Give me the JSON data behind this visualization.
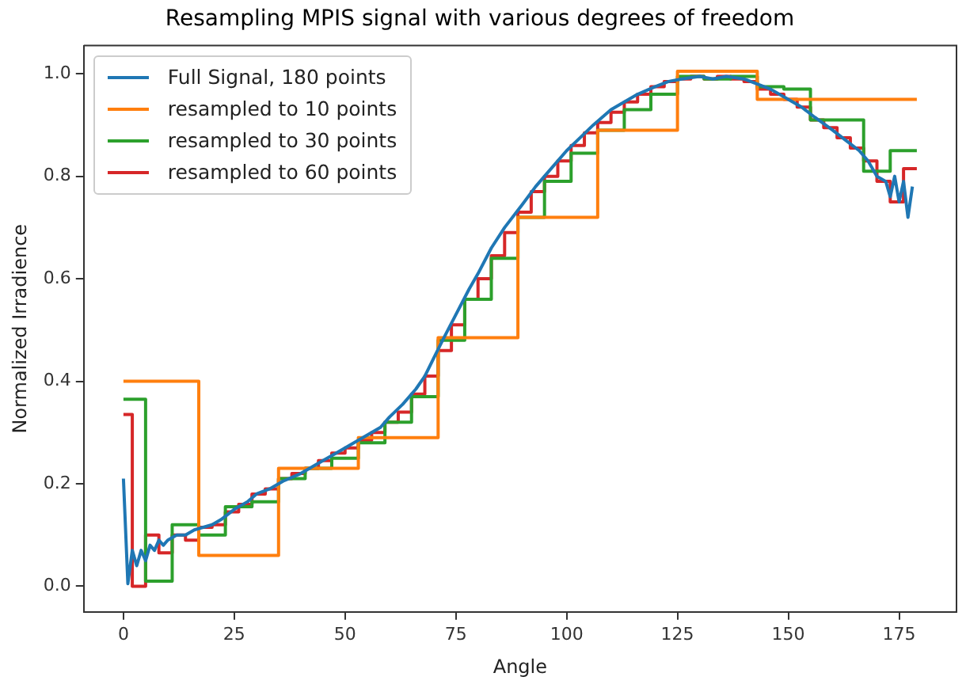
{
  "chart_data": {
    "type": "line",
    "title": "Resampling MPIS signal with various degrees of freedom",
    "xlabel": "Angle",
    "ylabel": "Normalized Irradience",
    "xlim": [
      -8.95,
      187.95
    ],
    "xticks": [
      0,
      25,
      50,
      75,
      100,
      125,
      150,
      175
    ],
    "ylim": [
      -0.05,
      1.055
    ],
    "yticks": [
      {
        "value": 0,
        "label": "0.0"
      },
      {
        "value": 0.2,
        "label": "0.2"
      },
      {
        "value": 0.4,
        "label": "0.4"
      },
      {
        "value": 0.6,
        "label": "0.6"
      },
      {
        "value": 0.8,
        "label": "0.8"
      },
      {
        "value": 1,
        "label": "1.0"
      }
    ],
    "grid": false,
    "legend": "top left",
    "line_style": "solid",
    "marker": "none",
    "series": [
      {
        "name": "Full Signal, 180 points",
        "type": "line",
        "color": "#1f77b4",
        "x": [
          0,
          1,
          2,
          3,
          4,
          5,
          6,
          7,
          8,
          9,
          10,
          12,
          14,
          16,
          18,
          20,
          22,
          25,
          28,
          30,
          33,
          36,
          40,
          44,
          48,
          50,
          54,
          58,
          60,
          63,
          66,
          68,
          70,
          72,
          75,
          78,
          80,
          83,
          86,
          90,
          93,
          96,
          100,
          103,
          106,
          110,
          113,
          116,
          120,
          123,
          126,
          130,
          133,
          136,
          140,
          143,
          146,
          150,
          153,
          156,
          160,
          163,
          166,
          168,
          170,
          172,
          173,
          174,
          175,
          176,
          177,
          178
        ],
        "values": [
          0.21,
          0.005,
          0.07,
          0.04,
          0.07,
          0.05,
          0.08,
          0.07,
          0.09,
          0.08,
          0.09,
          0.1,
          0.1,
          0.11,
          0.115,
          0.12,
          0.13,
          0.15,
          0.165,
          0.18,
          0.19,
          0.205,
          0.22,
          0.24,
          0.26,
          0.27,
          0.29,
          0.31,
          0.33,
          0.355,
          0.385,
          0.41,
          0.445,
          0.48,
          0.53,
          0.58,
          0.61,
          0.66,
          0.7,
          0.745,
          0.78,
          0.81,
          0.85,
          0.875,
          0.9,
          0.93,
          0.945,
          0.96,
          0.975,
          0.985,
          0.99,
          0.995,
          0.99,
          0.995,
          0.99,
          0.98,
          0.97,
          0.95,
          0.935,
          0.915,
          0.89,
          0.87,
          0.85,
          0.83,
          0.8,
          0.79,
          0.76,
          0.8,
          0.75,
          0.79,
          0.72,
          0.78
        ]
      },
      {
        "name": "resampled to 10 points",
        "type": "step",
        "color": "#ff7f0e",
        "x": [
          0,
          17,
          35,
          53,
          71,
          89,
          107,
          125,
          143,
          161,
          179
        ],
        "values": [
          0.4,
          0.06,
          0.23,
          0.29,
          0.485,
          0.72,
          0.89,
          1.005,
          0.95,
          0.95,
          0.95
        ]
      },
      {
        "name": "resampled to 30 points",
        "type": "step",
        "color": "#2ca02c",
        "x": [
          0,
          5,
          11,
          17,
          23,
          29,
          35,
          41,
          47,
          53,
          59,
          65,
          71,
          77,
          83,
          89,
          95,
          101,
          107,
          113,
          119,
          125,
          131,
          137,
          143,
          149,
          155,
          161,
          167,
          173,
          179
        ],
        "values": [
          0.365,
          0.01,
          0.12,
          0.1,
          0.155,
          0.165,
          0.21,
          0.23,
          0.25,
          0.28,
          0.32,
          0.37,
          0.48,
          0.56,
          0.64,
          0.72,
          0.79,
          0.845,
          0.89,
          0.93,
          0.96,
          0.995,
          0.99,
          0.995,
          0.975,
          0.97,
          0.91,
          0.91,
          0.81,
          0.85,
          0.85
        ]
      },
      {
        "name": "resampled to 60 points",
        "type": "step",
        "color": "#d62728",
        "x": [
          0,
          2,
          5,
          8,
          11,
          14,
          17,
          20,
          23,
          26,
          29,
          32,
          35,
          38,
          41,
          44,
          47,
          50,
          53,
          56,
          59,
          62,
          65,
          68,
          71,
          74,
          77,
          80,
          83,
          86,
          89,
          92,
          95,
          98,
          101,
          104,
          107,
          110,
          113,
          116,
          119,
          122,
          125,
          128,
          131,
          134,
          137,
          140,
          143,
          146,
          149,
          152,
          155,
          158,
          161,
          164,
          167,
          170,
          173,
          176,
          179
        ],
        "values": [
          0.335,
          0.0,
          0.1,
          0.065,
          0.1,
          0.09,
          0.115,
          0.12,
          0.145,
          0.16,
          0.18,
          0.19,
          0.21,
          0.22,
          0.23,
          0.245,
          0.26,
          0.27,
          0.285,
          0.3,
          0.32,
          0.34,
          0.375,
          0.41,
          0.46,
          0.51,
          0.56,
          0.6,
          0.645,
          0.69,
          0.73,
          0.77,
          0.8,
          0.83,
          0.86,
          0.885,
          0.905,
          0.925,
          0.945,
          0.96,
          0.975,
          0.985,
          0.99,
          0.995,
          0.99,
          0.995,
          0.99,
          0.985,
          0.97,
          0.96,
          0.95,
          0.935,
          0.91,
          0.895,
          0.875,
          0.855,
          0.83,
          0.79,
          0.75,
          0.815,
          0.815
        ]
      }
    ]
  }
}
